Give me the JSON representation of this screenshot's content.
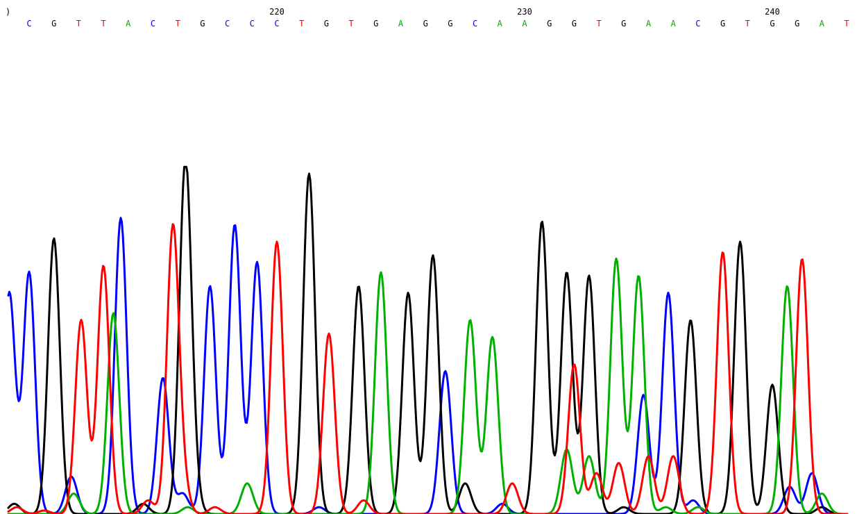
{
  "chart_data": {
    "type": "line",
    "position_labels": [
      {
        "text": ")",
        "base_index": 0
      },
      {
        "text": "220",
        "base_index": 10
      },
      {
        "text": "230",
        "base_index": 20
      },
      {
        "text": "240",
        "base_index": 30
      }
    ],
    "bases": [
      "C",
      "G",
      "T",
      "T",
      "A",
      "C",
      "T",
      "G",
      "C",
      "C",
      "C",
      "T",
      "G",
      "T",
      "G",
      "A",
      "G",
      "G",
      "C",
      "A",
      "A",
      "G",
      "G",
      "T",
      "G",
      "A",
      "A",
      "C",
      "G",
      "T",
      "G",
      "G",
      "A",
      "T"
    ],
    "colors": {
      "A": "#00b000",
      "C": "#0000ff",
      "G": "#000000",
      "T": "#ff0000"
    },
    "series": [
      {
        "base": "C",
        "peaks": [
          [
            -0.8,
            0.65
          ],
          [
            0,
            0.71
          ],
          [
            1.7,
            0.11
          ],
          [
            3.7,
            0.87
          ],
          [
            5.4,
            0.4
          ],
          [
            6.2,
            0.06
          ],
          [
            7.3,
            0.67
          ],
          [
            8.3,
            0.85
          ],
          [
            9.2,
            0.74
          ],
          [
            11.7,
            0.02
          ],
          [
            16.8,
            0.42
          ],
          [
            19.1,
            0.03
          ],
          [
            24.8,
            0.35
          ],
          [
            25.8,
            0.65
          ],
          [
            26.8,
            0.04
          ],
          [
            30.7,
            0.08
          ],
          [
            31.6,
            0.12
          ]
        ]
      },
      {
        "base": "G",
        "peaks": [
          [
            -0.6,
            0.03
          ],
          [
            1,
            0.81
          ],
          [
            4.6,
            0.03
          ],
          [
            6.3,
            1.0
          ],
          [
            6.6,
            0.1
          ],
          [
            11.3,
            1.0
          ],
          [
            13.3,
            0.67
          ],
          [
            15.3,
            0.65
          ],
          [
            16.3,
            0.76
          ],
          [
            17.6,
            0.09
          ],
          [
            20.7,
            0.86
          ],
          [
            21.7,
            0.71
          ],
          [
            22.6,
            0.7
          ],
          [
            24,
            0.02
          ],
          [
            26.7,
            0.57
          ],
          [
            28.7,
            0.8
          ],
          [
            30,
            0.38
          ],
          [
            32,
            0.02
          ]
        ]
      },
      {
        "base": "A",
        "peaks": [
          [
            1.8,
            0.06
          ],
          [
            3.4,
            0.59
          ],
          [
            6.4,
            0.02
          ],
          [
            8.8,
            0.09
          ],
          [
            14.2,
            0.71
          ],
          [
            17.8,
            0.57
          ],
          [
            18.7,
            0.52
          ],
          [
            21.7,
            0.19
          ],
          [
            22.6,
            0.17
          ],
          [
            23.7,
            0.75
          ],
          [
            24.6,
            0.7
          ],
          [
            25.7,
            0.02
          ],
          [
            27,
            0.02
          ],
          [
            30.6,
            0.67
          ],
          [
            32,
            0.06
          ]
        ]
      },
      {
        "base": "T",
        "peaks": [
          [
            -0.5,
            0.02
          ],
          [
            0.6,
            0.01
          ],
          [
            2.1,
            0.57
          ],
          [
            3,
            0.73
          ],
          [
            4.8,
            0.04
          ],
          [
            5.8,
            0.83
          ],
          [
            6.2,
            0.09
          ],
          [
            7.5,
            0.02
          ],
          [
            10,
            0.8
          ],
          [
            12.1,
            0.53
          ],
          [
            13.5,
            0.04
          ],
          [
            19.5,
            0.09
          ],
          [
            22,
            0.44
          ],
          [
            22.9,
            0.12
          ],
          [
            23.8,
            0.15
          ],
          [
            25,
            0.17
          ],
          [
            26,
            0.17
          ],
          [
            28,
            0.77
          ],
          [
            31.2,
            0.75
          ]
        ]
      }
    ]
  }
}
